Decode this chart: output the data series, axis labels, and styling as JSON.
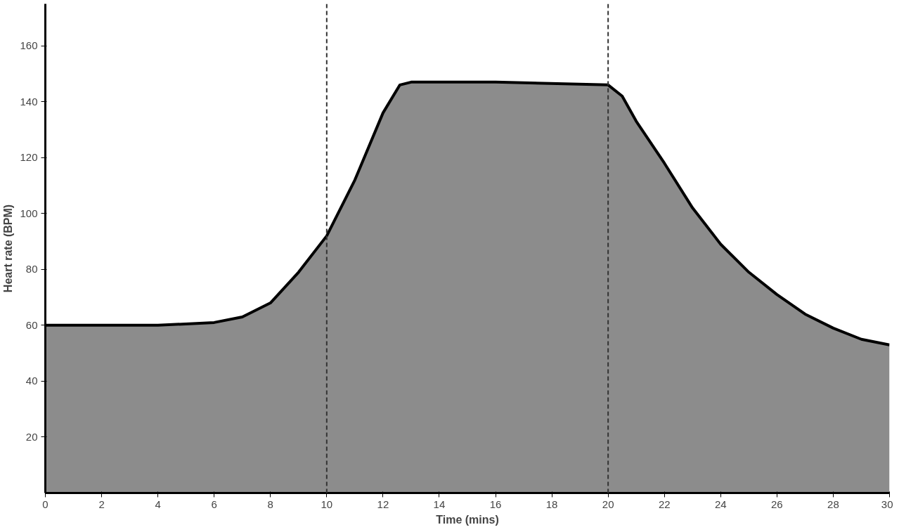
{
  "chart_data": {
    "type": "area",
    "xlabel": "Time (mins)",
    "ylabel": "Heart rate (BPM)",
    "x": [
      0,
      2,
      4,
      6,
      7,
      8,
      9,
      10,
      11,
      12,
      12.6,
      13,
      16,
      20,
      20.5,
      21,
      22,
      23,
      24,
      25,
      26,
      27,
      28,
      29,
      30
    ],
    "series": [
      {
        "color": "#8c8c8c",
        "values": [
          60,
          60,
          60,
          61,
          63,
          68,
          79,
          92,
          112,
          136,
          146,
          147,
          147,
          146,
          142,
          133,
          118,
          102,
          89,
          79,
          71,
          64,
          59,
          55,
          53
        ]
      }
    ],
    "xlim": [
      0,
      30
    ],
    "ylim": [
      0,
      175
    ],
    "xticks": [
      0,
      2,
      4,
      6,
      8,
      10,
      12,
      14,
      16,
      18,
      20,
      22,
      24,
      26,
      28,
      30
    ],
    "yticks": [
      20,
      40,
      60,
      80,
      100,
      120,
      140,
      160
    ],
    "ref_lines": [
      {
        "axis": "x",
        "value": 10,
        "color": "#333333",
        "line_style": "dashed"
      },
      {
        "axis": "x",
        "value": 20,
        "color": "#333333",
        "line_style": "dashed"
      }
    ],
    "grid": false
  }
}
